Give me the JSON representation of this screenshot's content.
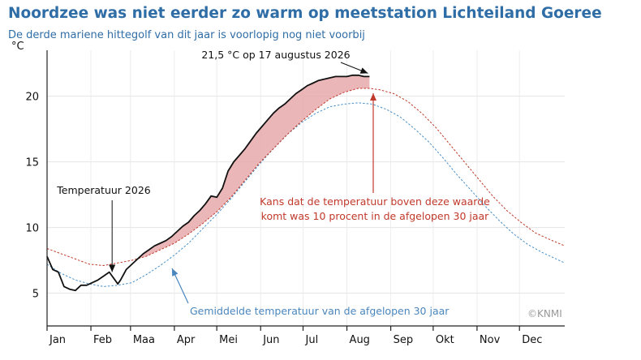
{
  "header": {
    "title": "Noordzee was niet eerder zo warm op meetstation Lichteiland Goeree",
    "subtitle": "De derde mariene hittegolf van dit jaar is voorlopig nog niet voorbij"
  },
  "credit": "©KNMI",
  "colors": {
    "title": "#2f6da6",
    "current_year": "#111111",
    "p90": "#c0392b",
    "mean": "#4a90c8",
    "excess_fill": "#e7a9ab",
    "annotation_red": "#c0392b",
    "annotation_blue": "#4a86bd"
  },
  "chart_data": {
    "type": "line",
    "unit_label": "°C",
    "ylim": [
      2.5,
      23.5
    ],
    "yticks": [
      5,
      10,
      15,
      20
    ],
    "xlim": [
      0,
      366
    ],
    "month_labels": [
      "Jan",
      "Feb",
      "Maa",
      "Apr",
      "Mei",
      "Jun",
      "Jul",
      "Aug",
      "Sep",
      "Okt",
      "Nov",
      "Dec"
    ],
    "month_tick_days": [
      0,
      31,
      59,
      90,
      120,
      151,
      181,
      212,
      243,
      273,
      304,
      334
    ],
    "grid": true,
    "series": [
      {
        "key": "temp2026",
        "style": "solid",
        "x": [
          0,
          4,
          8,
          12,
          16,
          20,
          24,
          28,
          32,
          36,
          40,
          44,
          46,
          48,
          50,
          52,
          56,
          60,
          64,
          68,
          72,
          76,
          80,
          84,
          88,
          92,
          96,
          100,
          104,
          108,
          112,
          116,
          120,
          124,
          128,
          132,
          136,
          140,
          144,
          148,
          152,
          156,
          160,
          164,
          168,
          172,
          176,
          180,
          184,
          188,
          192,
          196,
          200,
          204,
          208,
          212,
          216,
          220,
          224,
          228
        ],
        "y": [
          7.8,
          6.8,
          6.6,
          5.5,
          5.3,
          5.2,
          5.6,
          5.6,
          5.8,
          6.0,
          6.3,
          6.6,
          6.3,
          6.0,
          5.7,
          6.0,
          6.8,
          7.2,
          7.6,
          8.0,
          8.3,
          8.6,
          8.8,
          9.0,
          9.3,
          9.7,
          10.1,
          10.4,
          10.9,
          11.3,
          11.8,
          12.4,
          12.3,
          13.0,
          14.3,
          15.0,
          15.5,
          16.0,
          16.6,
          17.2,
          17.7,
          18.2,
          18.7,
          19.1,
          19.4,
          19.8,
          20.2,
          20.5,
          20.8,
          21.0,
          21.2,
          21.3,
          21.4,
          21.5,
          21.5,
          21.5,
          21.6,
          21.6,
          21.5,
          21.5
        ]
      },
      {
        "key": "p90",
        "style": "dotted",
        "x": [
          0,
          10,
          20,
          30,
          40,
          50,
          60,
          70,
          80,
          90,
          100,
          110,
          120,
          130,
          140,
          150,
          160,
          170,
          180,
          190,
          200,
          210,
          220,
          228,
          235,
          245,
          255,
          265,
          275,
          285,
          295,
          305,
          315,
          325,
          335,
          345,
          355,
          366
        ],
        "y": [
          8.4,
          8.0,
          7.6,
          7.2,
          7.1,
          7.3,
          7.5,
          7.8,
          8.3,
          8.8,
          9.5,
          10.3,
          11.2,
          12.3,
          13.6,
          14.9,
          16.0,
          17.1,
          18.1,
          19.0,
          19.8,
          20.3,
          20.6,
          20.6,
          20.5,
          20.2,
          19.6,
          18.7,
          17.6,
          16.3,
          15.0,
          13.7,
          12.4,
          11.3,
          10.4,
          9.6,
          9.1,
          8.6
        ]
      },
      {
        "key": "mean",
        "style": "dotted",
        "x": [
          0,
          10,
          20,
          30,
          40,
          50,
          60,
          70,
          80,
          90,
          100,
          110,
          120,
          130,
          140,
          150,
          160,
          170,
          180,
          190,
          200,
          210,
          220,
          230,
          240,
          250,
          260,
          270,
          280,
          290,
          300,
          310,
          320,
          330,
          340,
          350,
          360,
          366
        ],
        "y": [
          7.2,
          6.5,
          6.0,
          5.7,
          5.5,
          5.6,
          5.8,
          6.4,
          7.1,
          7.9,
          8.8,
          9.9,
          11.0,
          12.2,
          13.5,
          14.8,
          16.0,
          17.1,
          18.0,
          18.7,
          19.2,
          19.4,
          19.5,
          19.4,
          19.0,
          18.4,
          17.5,
          16.5,
          15.3,
          14.0,
          12.8,
          11.6,
          10.5,
          9.5,
          8.7,
          8.1,
          7.6,
          7.3
        ]
      }
    ],
    "annotations": [
      {
        "key": "max_label",
        "text": "21,5 °C op 17 augustus 2026"
      },
      {
        "key": "temp_label",
        "text": "Temperatuur 2026"
      },
      {
        "key": "p90_label",
        "lines": [
          "Kans dat de temperatuur boven deze waarde",
          "komt was 10 procent in de afgelopen 30 jaar"
        ]
      },
      {
        "key": "mean_label",
        "text": "Gemiddelde temperatuur van de afgelopen 30 jaar"
      }
    ]
  }
}
